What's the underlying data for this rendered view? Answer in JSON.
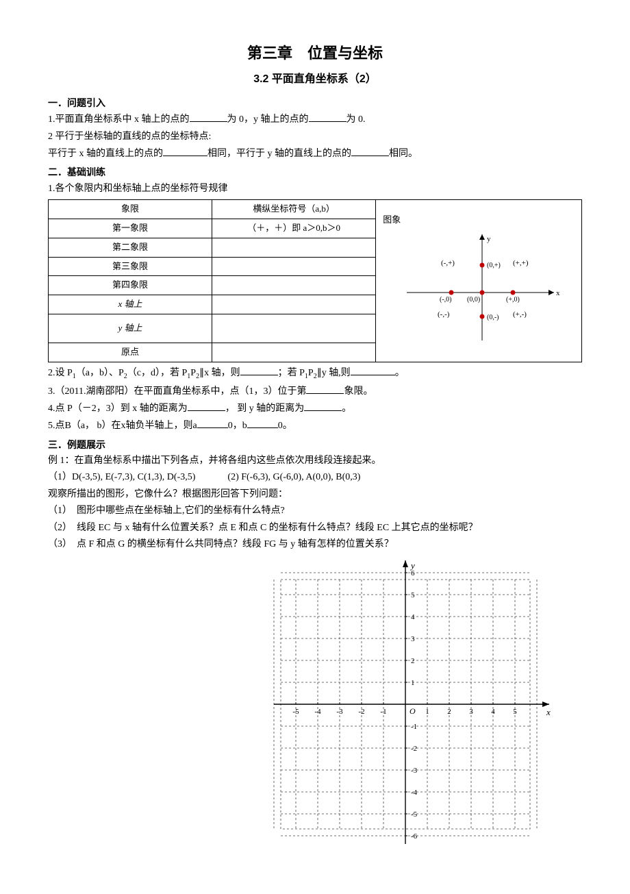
{
  "title_main": "第三章　位置与坐标",
  "title_sub": "3.2 平面直角坐标系（2）",
  "sec1_h": "一．问题引入",
  "sec1_q1_a": "1.平面直角坐标系中 x 轴上的点的",
  "sec1_q1_b": "为 0，y 轴上的点的",
  "sec1_q1_c": "为 0.",
  "sec1_q2": "2 平行于坐标轴的直线的点的坐标特点:",
  "sec1_q3_a": "平行于 x 轴的直线上的点的",
  "sec1_q3_b": "相同，平行于 y 轴的直线上的点的",
  "sec1_q3_c": "相同。",
  "sec2_h": "二．基础训练",
  "sec2_q1": "1.各个象限内和坐标轴上点的坐标符号规律",
  "table": {
    "col1_h": "象限",
    "col2_h": "横纵坐标符号（a,b）",
    "col3_h": "图象",
    "rows": [
      {
        "c1": "第一象限",
        "c2": "（＋，＋）即 a＞0,b＞0"
      },
      {
        "c1": "第二象限",
        "c2": ""
      },
      {
        "c1": "第三象限",
        "c2": ""
      },
      {
        "c1": "第四象限",
        "c2": ""
      },
      {
        "c1": "x 轴上",
        "c2": ""
      },
      {
        "c1": "y 轴上",
        "c2": ""
      },
      {
        "c1": "原点",
        "c2": ""
      }
    ]
  },
  "quad_diagram": {
    "labels": {
      "y": "y",
      "x": "x",
      "q2": "(-,+)",
      "q1": "(+,+)",
      "q3": "(-,-)",
      "q4": "(+,-)",
      "neg_x": "(-,0)",
      "origin": "(0,0)",
      "pos_x": "(+,0)",
      "neg_y": "(0,-)",
      "pos_y": "(0,+)"
    },
    "colors": {
      "axis": "#000000",
      "point": "#c00000",
      "text": "#000000"
    }
  },
  "sec2_q2_a": "2.设 P",
  "sec2_q2_b": "（a，b）、P",
  "sec2_q2_c": "（c，d），若 P",
  "sec2_q2_d": "P",
  "sec2_q2_e": "∥x 轴，则",
  "sec2_q2_f": "；若 P",
  "sec2_q2_g": "P",
  "sec2_q2_h": "∥y 轴,则",
  "sec2_q2_i": "。",
  "sec2_q3_a": "3.（2011.湖南邵阳）在平面直角坐标系中，点（1，3）位于第",
  "sec2_q3_b": "象限。",
  "sec2_q4_a": "4.点 P（－2，3）到 x 轴的距离为",
  "sec2_q4_b": "， 到 y 轴的距离为",
  "sec2_q4_c": "。",
  "sec2_q5_a": "5.点B（a， b）在x轴负半轴上，则a",
  "sec2_q5_b": "0，b",
  "sec2_q5_c": "0。",
  "sec3_h": "三．例题展示",
  "ex1_title": "例 1：在直角坐标系中描出下列各点，并将各组内这些点依次用线段连接起来。",
  "ex1_pts_a": "（1）D(-3,5), E(-7,3), C(1,3), D(-3,5)",
  "ex1_pts_b": "(2) F(-6,3), G(-6,0), A(0,0), B(0,3)",
  "ex1_obs": "观察所描出的图形，它像什么？根据图形回答下列问题：",
  "ex1_q1": "（1）　图形中哪些点在坐标轴上,它们的坐标有什么特点?",
  "ex1_q2": "（2）　线段 EC 与 x 轴有什么位置关系？点 E 和点 C 的坐标有什么特点？线段 EC 上其它点的坐标呢？",
  "ex1_q3": "（3）　点 F 和点 G 的横坐标有什么共同特点？线段 FG 与 y 轴有怎样的位置关系？",
  "grid": {
    "x_labels_neg": [
      "-5",
      "-4",
      "-3",
      "-2",
      "-1"
    ],
    "x_labels_pos": [
      "1",
      "2",
      "3",
      "4",
      "5"
    ],
    "y_labels_pos": [
      "1",
      "2",
      "3",
      "4",
      "5",
      "6"
    ],
    "y_labels_neg": [
      "-1",
      "-2",
      "-3",
      "-4",
      "-5",
      "-6"
    ],
    "origin": "O",
    "x_axis": "x",
    "y_axis": "y",
    "colors": {
      "grid": "#444",
      "axis": "#000",
      "text": "#000"
    }
  }
}
